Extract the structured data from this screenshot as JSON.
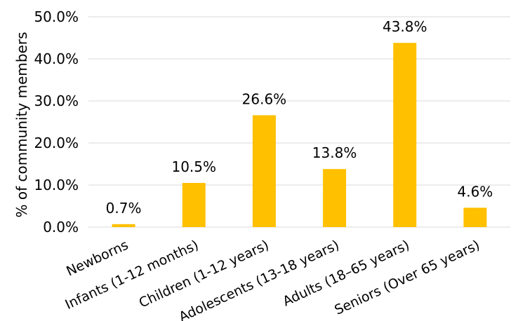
{
  "chart_data": {
    "type": "bar",
    "categories": [
      "Newborns",
      "Infants (1-12 months)",
      "Children (1-12 years)",
      "Adolescents (13-18 years)",
      "Adults (18–65 years)",
      "Seniors (Over 65 years)"
    ],
    "values": [
      0.7,
      10.5,
      26.6,
      13.8,
      43.8,
      4.6
    ],
    "data_labels": [
      "0.7%",
      "10.5%",
      "26.6%",
      "13.8%",
      "43.8%",
      "4.6%"
    ],
    "title": "",
    "xlabel": "",
    "ylabel": "% of community members",
    "ylim": [
      0,
      50
    ],
    "yticks": [
      0,
      10,
      20,
      30,
      40,
      50
    ],
    "ytick_labels": [
      "0.0%",
      "10.0%",
      "20.0%",
      "30.0%",
      "40.0%",
      "50.0%"
    ],
    "grid": true,
    "legend": "none",
    "bar_color": "#FFC000",
    "grid_color": "#D9D9D9"
  }
}
